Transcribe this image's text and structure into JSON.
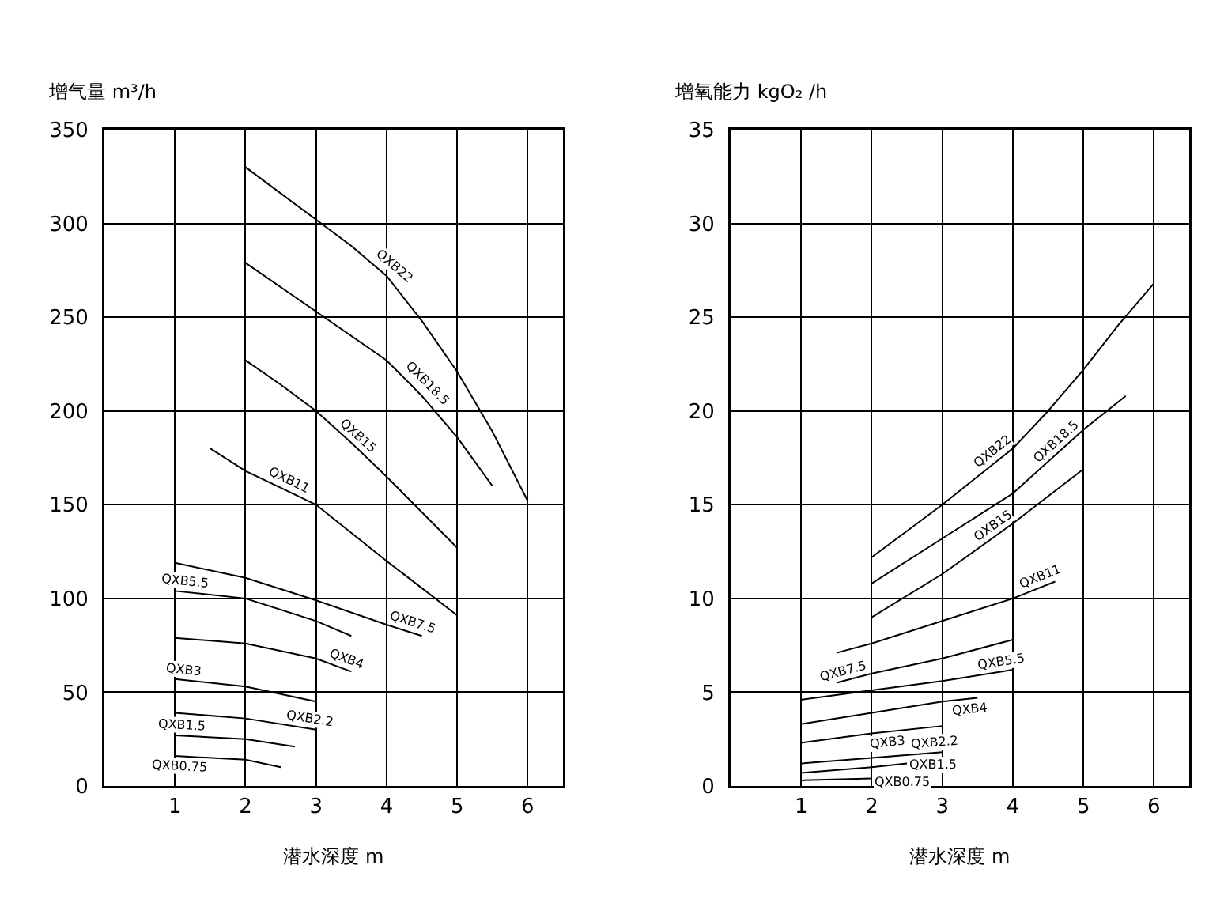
{
  "chart_data": [
    {
      "type": "line",
      "ylabel": "增气量 m³/h",
      "xlabel": "潜水深度 m",
      "xlim": [
        0,
        6.5
      ],
      "xticks": [
        1,
        2,
        3,
        4,
        5,
        6
      ],
      "ylim": [
        0,
        350
      ],
      "yticks": [
        0,
        50,
        100,
        150,
        200,
        250,
        300,
        350
      ],
      "grid": true,
      "legend": false,
      "marker": "none",
      "line_style": "solid",
      "series": [
        {
          "name": "QXB22",
          "color": "#000000",
          "x": [
            2,
            2.5,
            3,
            3.5,
            4,
            4.5,
            5,
            5.5,
            6
          ],
          "values": [
            330,
            316,
            302,
            288,
            272,
            248,
            221,
            189,
            152
          ]
        },
        {
          "name": "QXB18.5",
          "color": "#000000",
          "x": [
            2,
            3,
            4,
            4.5,
            5,
            5.5
          ],
          "values": [
            279,
            253,
            227,
            208,
            186,
            160
          ]
        },
        {
          "name": "QXB15",
          "color": "#000000",
          "x": [
            2,
            2.5,
            3,
            3.5,
            4,
            4.5,
            5
          ],
          "values": [
            227,
            214,
            200,
            183,
            165,
            146,
            127
          ]
        },
        {
          "name": "QXB11",
          "color": "#000000",
          "x": [
            1.5,
            2,
            2.5,
            3,
            4,
            5
          ],
          "values": [
            180,
            168,
            159,
            150,
            120,
            91
          ]
        },
        {
          "name": "QXB7.5",
          "color": "#000000",
          "x": [
            1,
            2,
            3,
            4,
            4.5
          ],
          "values": [
            119,
            111,
            99,
            86,
            80
          ]
        },
        {
          "name": "QXB5.5",
          "color": "#000000",
          "x": [
            1,
            2,
            3,
            3.5
          ],
          "values": [
            104,
            100,
            88,
            80
          ]
        },
        {
          "name": "QXB4",
          "color": "#000000",
          "x": [
            1,
            2,
            3,
            3.5
          ],
          "values": [
            79,
            76,
            68,
            61
          ]
        },
        {
          "name": "QXB3",
          "color": "#000000",
          "x": [
            1,
            2,
            3
          ],
          "values": [
            57,
            53,
            45
          ]
        },
        {
          "name": "QXB2.2",
          "color": "#000000",
          "x": [
            1,
            2,
            3
          ],
          "values": [
            39,
            36,
            30
          ]
        },
        {
          "name": "QXB1.5",
          "color": "#000000",
          "x": [
            1,
            2,
            2.7
          ],
          "values": [
            27,
            25,
            21
          ]
        },
        {
          "name": "QXB0.75",
          "color": "#000000",
          "x": [
            1,
            2,
            2.5
          ],
          "values": [
            16,
            14,
            10
          ]
        }
      ]
    },
    {
      "type": "line",
      "ylabel": "增氧能力 kgO₂ /h",
      "xlabel": "潜水深度 m",
      "xlim": [
        0,
        6.5
      ],
      "xticks": [
        1,
        2,
        3,
        4,
        5,
        6
      ],
      "ylim": [
        0,
        35
      ],
      "yticks": [
        0,
        5,
        10,
        15,
        20,
        25,
        30,
        35
      ],
      "grid": true,
      "legend": false,
      "marker": "none",
      "line_style": "solid",
      "series": [
        {
          "name": "QXB22",
          "color": "#000000",
          "x": [
            2,
            3,
            4,
            4.5,
            5,
            5.5,
            6
          ],
          "values": [
            12.2,
            15,
            18,
            20,
            22.2,
            24.6,
            26.8
          ]
        },
        {
          "name": "QXB18.5",
          "color": "#000000",
          "x": [
            2,
            3,
            4,
            5,
            5.6
          ],
          "values": [
            10.8,
            13.2,
            15.6,
            19,
            20.8
          ]
        },
        {
          "name": "QXB15",
          "color": "#000000",
          "x": [
            2,
            3,
            4,
            5
          ],
          "values": [
            9,
            11.3,
            14,
            16.9
          ]
        },
        {
          "name": "QXB11",
          "color": "#000000",
          "x": [
            1.5,
            2,
            3,
            4,
            4.6
          ],
          "values": [
            7.1,
            7.6,
            8.8,
            10,
            10.9
          ]
        },
        {
          "name": "QXB7.5",
          "color": "#000000",
          "x": [
            1.5,
            2,
            3,
            4
          ],
          "values": [
            5.5,
            6,
            6.8,
            7.8
          ]
        },
        {
          "name": "QXB5.5",
          "color": "#000000",
          "x": [
            1,
            2,
            3,
            4
          ],
          "values": [
            4.6,
            5.1,
            5.6,
            6.2
          ]
        },
        {
          "name": "QXB4",
          "color": "#000000",
          "x": [
            1,
            2,
            3,
            3.5
          ],
          "values": [
            3.3,
            3.9,
            4.5,
            4.7
          ]
        },
        {
          "name": "QXB3",
          "color": "#000000",
          "x": [
            1,
            2,
            3
          ],
          "values": [
            2.3,
            2.8,
            3.2
          ]
        },
        {
          "name": "QXB2.2",
          "color": "#000000",
          "x": [
            1,
            2,
            3
          ],
          "values": [
            1.2,
            1.5,
            1.8
          ]
        },
        {
          "name": "QXB1.5",
          "color": "#000000",
          "x": [
            1,
            2,
            2.5
          ],
          "values": [
            0.7,
            1,
            1.2
          ]
        },
        {
          "name": "QXB0.75",
          "color": "#000000",
          "x": [
            1,
            2
          ],
          "values": [
            0.3,
            0.4
          ]
        }
      ]
    }
  ]
}
